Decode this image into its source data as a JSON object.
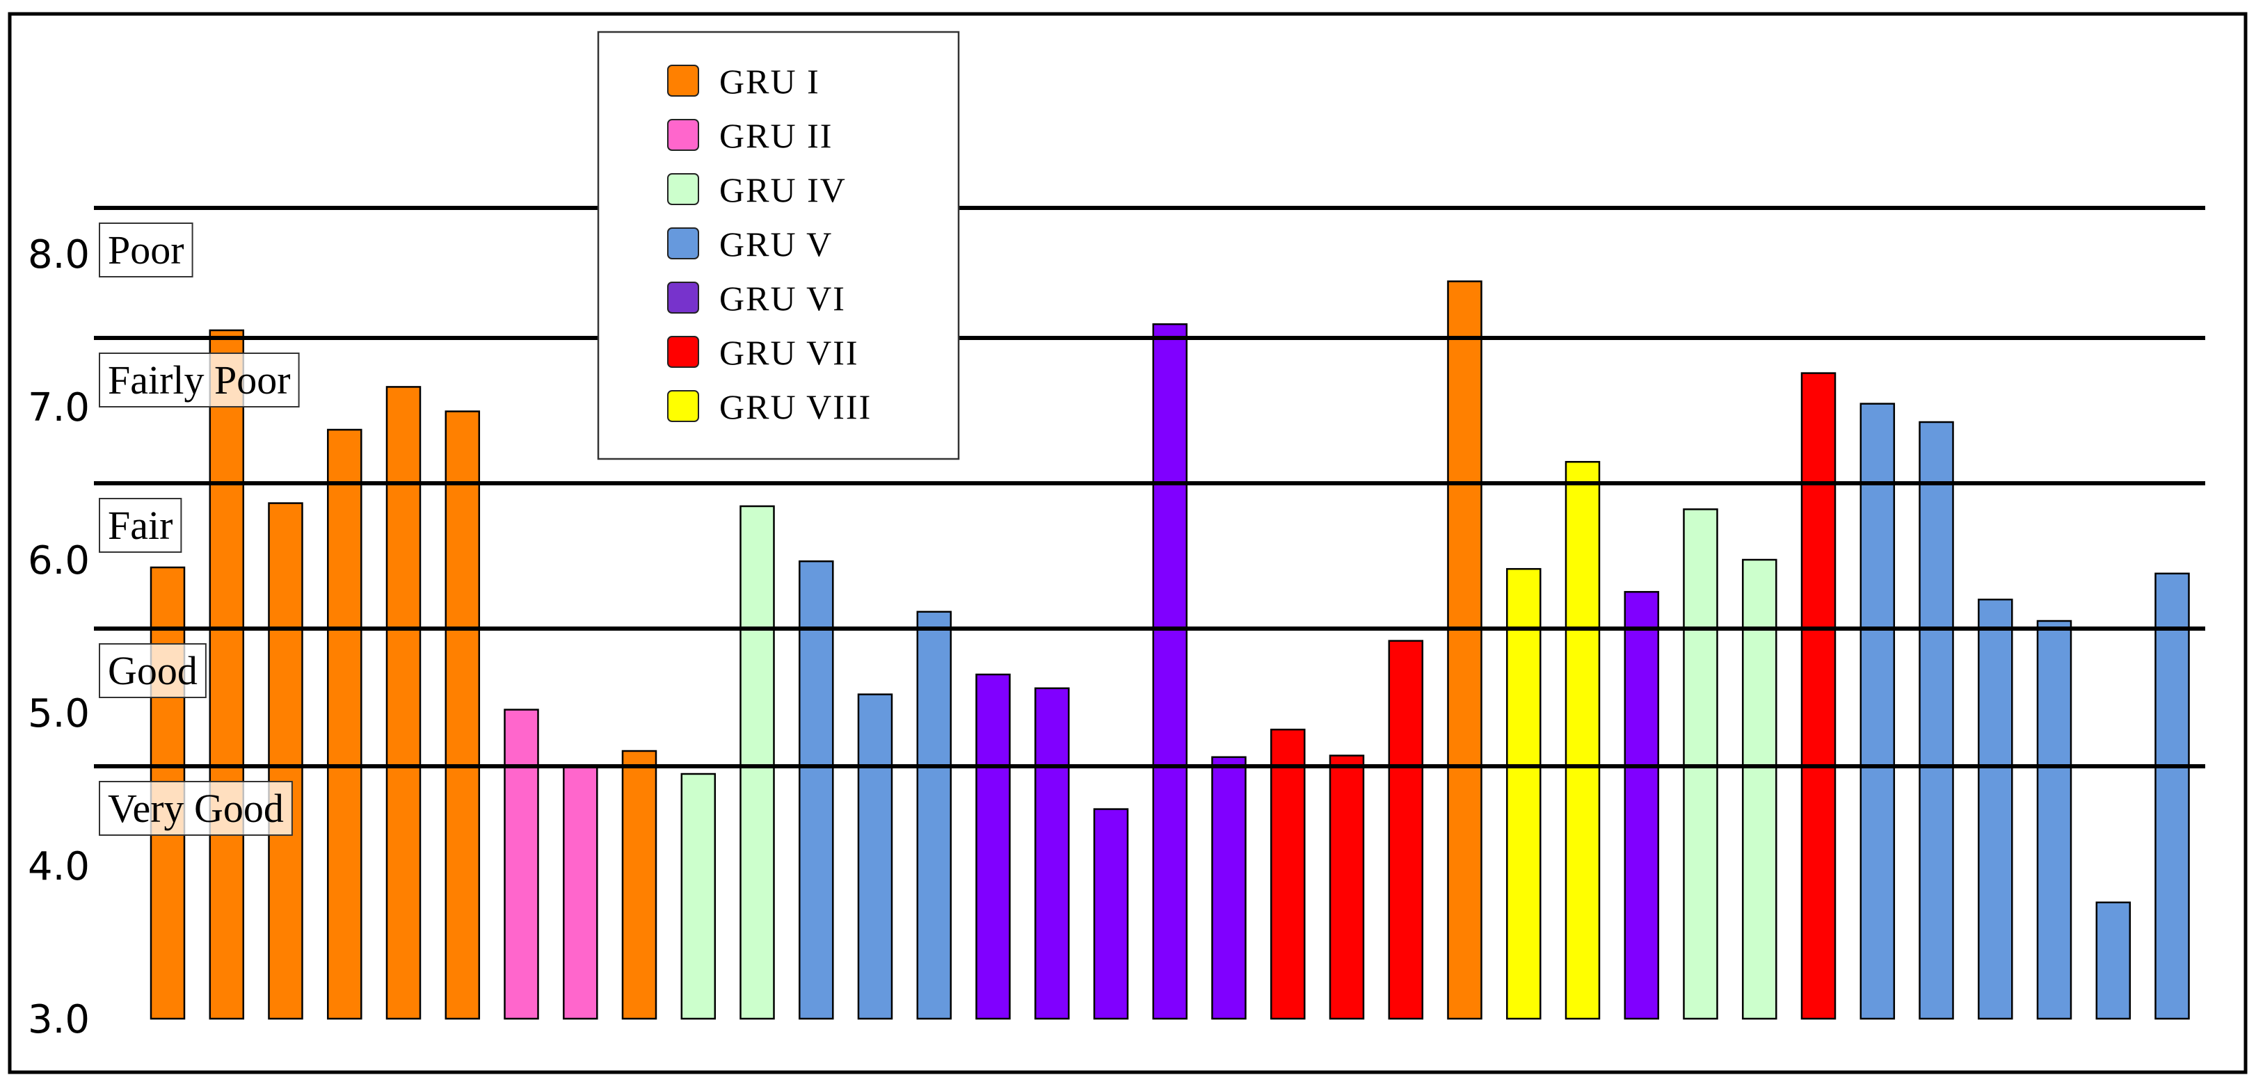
{
  "chart_data": {
    "type": "bar",
    "ylim": [
      3.0,
      8.3
    ],
    "yticks": [
      "3.0",
      "4.0",
      "5.0",
      "6.0",
      "7.0",
      "8.0"
    ],
    "ytick_values": [
      3.0,
      4.0,
      5.0,
      6.0,
      7.0,
      8.0
    ],
    "grid": false,
    "legend_position": "top-center",
    "legend": [
      {
        "name": "GRU I",
        "color": "#FF8000"
      },
      {
        "name": "GRU II",
        "color": "#FF66CC"
      },
      {
        "name": "GRU IV",
        "color": "#CCFFCC"
      },
      {
        "name": "GRU V",
        "color": "#6699DD"
      },
      {
        "name": "GRU VI",
        "color": "#7733CC"
      },
      {
        "name": "GRU VII",
        "color": "#FF0000"
      },
      {
        "name": "GRU VIII",
        "color": "#FFFF00"
      }
    ],
    "bar_colors": {
      "GRU I": "#FF8000",
      "GRU II": "#FF66CC",
      "GRU IV": "#CCFFCC",
      "GRU V": "#6699DD",
      "GRU VI": "#8000FF",
      "GRU VII": "#FF0000",
      "GRU VIII": "#FFFF00"
    },
    "quality_bands": [
      {
        "label": "Poor",
        "threshold": 8.3
      },
      {
        "label": "Fairly Poor",
        "threshold": 7.45
      },
      {
        "label": "Fair",
        "threshold": 6.5
      },
      {
        "label": "Good",
        "threshold": 5.55
      },
      {
        "label": "Very Good",
        "threshold": 4.65
      }
    ],
    "bars": [
      {
        "group": "GRU I",
        "value": 5.95
      },
      {
        "group": "GRU I",
        "value": 7.5
      },
      {
        "group": "GRU I",
        "value": 6.37
      },
      {
        "group": "GRU I",
        "value": 6.85
      },
      {
        "group": "GRU I",
        "value": 7.13
      },
      {
        "group": "GRU I",
        "value": 6.97
      },
      {
        "group": "GRU II",
        "value": 5.02
      },
      {
        "group": "GRU II",
        "value": 4.65
      },
      {
        "group": "GRU I",
        "value": 4.75
      },
      {
        "group": "GRU IV",
        "value": 4.6
      },
      {
        "group": "GRU IV",
        "value": 6.35
      },
      {
        "group": "GRU V",
        "value": 5.99
      },
      {
        "group": "GRU V",
        "value": 5.12
      },
      {
        "group": "GRU V",
        "value": 5.66
      },
      {
        "group": "GRU VI",
        "value": 5.25
      },
      {
        "group": "GRU VI",
        "value": 5.16
      },
      {
        "group": "GRU VI",
        "value": 4.37
      },
      {
        "group": "GRU VI",
        "value": 7.54
      },
      {
        "group": "GRU VI",
        "value": 4.71
      },
      {
        "group": "GRU VII",
        "value": 4.89
      },
      {
        "group": "GRU VII",
        "value": 4.72
      },
      {
        "group": "GRU VII",
        "value": 5.47
      },
      {
        "group": "GRU I",
        "value": 7.82
      },
      {
        "group": "GRU VIII",
        "value": 5.94
      },
      {
        "group": "GRU VIII",
        "value": 6.64
      },
      {
        "group": "GRU VI",
        "value": 5.79
      },
      {
        "group": "GRU IV",
        "value": 6.33
      },
      {
        "group": "GRU IV",
        "value": 6.0
      },
      {
        "group": "GRU VII",
        "value": 7.22
      },
      {
        "group": "GRU V",
        "value": 7.02
      },
      {
        "group": "GRU V",
        "value": 6.9
      },
      {
        "group": "GRU V",
        "value": 5.74
      },
      {
        "group": "GRU V",
        "value": 5.6
      },
      {
        "group": "GRU V",
        "value": 3.76
      },
      {
        "group": "GRU V",
        "value": 5.91
      }
    ]
  }
}
